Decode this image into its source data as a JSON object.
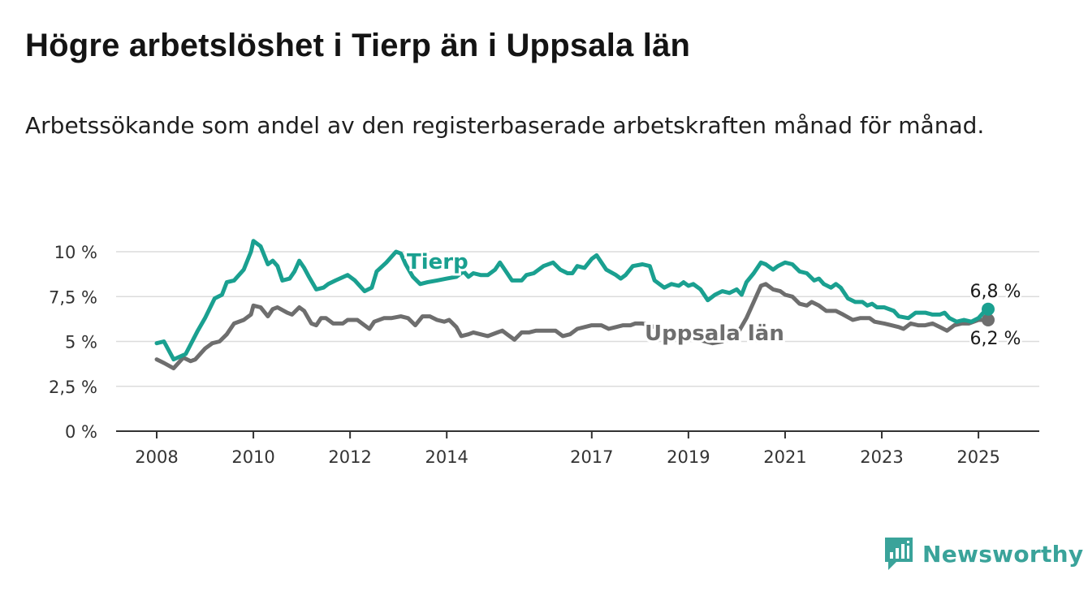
{
  "title": "Högre arbetslöshet i Tierp än i Uppsala län",
  "subtitle": "Arbetssökande som andel av den registerbaserade arbetskraften månad för månad.",
  "brand": {
    "name": "Newsworthy",
    "icon": "newsworthy-logo-icon",
    "color": "#3aa39a"
  },
  "chart_data": {
    "type": "line",
    "y_ticks": [
      {
        "value": 0,
        "label": "0 %"
      },
      {
        "value": 2.5,
        "label": "2,5 %"
      },
      {
        "value": 5,
        "label": "5 %"
      },
      {
        "value": 7.5,
        "label": "7,5 %"
      },
      {
        "value": 10,
        "label": "10 %"
      }
    ],
    "x_ticks": [
      {
        "value": 2008,
        "label": "2008"
      },
      {
        "value": 2010,
        "label": "2010"
      },
      {
        "value": 2012,
        "label": "2012"
      },
      {
        "value": 2014,
        "label": "2014"
      },
      {
        "value": 2017,
        "label": "2017"
      },
      {
        "value": 2019,
        "label": "2019"
      },
      {
        "value": 2021,
        "label": "2021"
      },
      {
        "value": 2023,
        "label": "2023"
      },
      {
        "value": 2025,
        "label": "2025"
      }
    ],
    "xlim": [
      2008,
      2025.2
    ],
    "ylim": [
      0,
      10
    ],
    "grid": true,
    "series": [
      {
        "name": "Tierp",
        "color": "#1aa090",
        "end_label": "6,8 %",
        "points": [
          [
            2008.0,
            4.9
          ],
          [
            2008.15,
            5.0
          ],
          [
            2008.35,
            4.0
          ],
          [
            2008.6,
            4.3
          ],
          [
            2008.85,
            5.6
          ],
          [
            2009.0,
            6.3
          ],
          [
            2009.2,
            7.4
          ],
          [
            2009.35,
            7.6
          ],
          [
            2009.45,
            8.3
          ],
          [
            2009.6,
            8.4
          ],
          [
            2009.8,
            9.0
          ],
          [
            2009.95,
            10.0
          ],
          [
            2010.0,
            10.6
          ],
          [
            2010.15,
            10.3
          ],
          [
            2010.3,
            9.3
          ],
          [
            2010.4,
            9.5
          ],
          [
            2010.5,
            9.2
          ],
          [
            2010.6,
            8.4
          ],
          [
            2010.75,
            8.5
          ],
          [
            2010.85,
            8.9
          ],
          [
            2010.95,
            9.5
          ],
          [
            2011.05,
            9.1
          ],
          [
            2011.15,
            8.6
          ],
          [
            2011.3,
            7.9
          ],
          [
            2011.45,
            8.0
          ],
          [
            2011.55,
            8.2
          ],
          [
            2011.7,
            8.4
          ],
          [
            2011.95,
            8.7
          ],
          [
            2012.1,
            8.4
          ],
          [
            2012.3,
            7.8
          ],
          [
            2012.45,
            8.0
          ],
          [
            2012.55,
            8.9
          ],
          [
            2012.75,
            9.4
          ],
          [
            2012.95,
            10.0
          ],
          [
            2013.05,
            9.9
          ],
          [
            2013.15,
            9.3
          ],
          [
            2013.3,
            8.6
          ],
          [
            2013.45,
            8.2
          ],
          [
            2013.6,
            8.3
          ],
          [
            2013.8,
            8.4
          ],
          [
            2014.0,
            8.5
          ],
          [
            2014.2,
            8.6
          ],
          [
            2014.35,
            8.9
          ],
          [
            2014.45,
            8.6
          ],
          [
            2014.55,
            8.8
          ],
          [
            2014.7,
            8.7
          ],
          [
            2014.85,
            8.7
          ],
          [
            2015.0,
            9.0
          ],
          [
            2015.1,
            9.4
          ],
          [
            2015.2,
            9.0
          ],
          [
            2015.35,
            8.4
          ],
          [
            2015.55,
            8.4
          ],
          [
            2015.65,
            8.7
          ],
          [
            2015.8,
            8.8
          ],
          [
            2016.0,
            9.2
          ],
          [
            2016.2,
            9.4
          ],
          [
            2016.35,
            9.0
          ],
          [
            2016.5,
            8.8
          ],
          [
            2016.6,
            8.8
          ],
          [
            2016.7,
            9.2
          ],
          [
            2016.85,
            9.1
          ],
          [
            2017.0,
            9.6
          ],
          [
            2017.1,
            9.8
          ],
          [
            2017.3,
            9.0
          ],
          [
            2017.5,
            8.7
          ],
          [
            2017.6,
            8.5
          ],
          [
            2017.7,
            8.7
          ],
          [
            2017.85,
            9.2
          ],
          [
            2018.05,
            9.3
          ],
          [
            2018.2,
            9.2
          ],
          [
            2018.3,
            8.4
          ],
          [
            2018.5,
            8.0
          ],
          [
            2018.65,
            8.2
          ],
          [
            2018.8,
            8.1
          ],
          [
            2018.9,
            8.3
          ],
          [
            2019.0,
            8.1
          ],
          [
            2019.1,
            8.2
          ],
          [
            2019.25,
            7.9
          ],
          [
            2019.4,
            7.3
          ],
          [
            2019.55,
            7.6
          ],
          [
            2019.7,
            7.8
          ],
          [
            2019.85,
            7.7
          ],
          [
            2020.0,
            7.9
          ],
          [
            2020.1,
            7.6
          ],
          [
            2020.2,
            8.3
          ],
          [
            2020.35,
            8.8
          ],
          [
            2020.5,
            9.4
          ],
          [
            2020.6,
            9.3
          ],
          [
            2020.75,
            9.0
          ],
          [
            2020.85,
            9.2
          ],
          [
            2021.0,
            9.4
          ],
          [
            2021.15,
            9.3
          ],
          [
            2021.3,
            8.9
          ],
          [
            2021.45,
            8.8
          ],
          [
            2021.6,
            8.4
          ],
          [
            2021.7,
            8.5
          ],
          [
            2021.8,
            8.2
          ],
          [
            2021.95,
            8.0
          ],
          [
            2022.05,
            8.2
          ],
          [
            2022.15,
            8.0
          ],
          [
            2022.3,
            7.4
          ],
          [
            2022.45,
            7.2
          ],
          [
            2022.6,
            7.2
          ],
          [
            2022.7,
            7.0
          ],
          [
            2022.8,
            7.1
          ],
          [
            2022.9,
            6.9
          ],
          [
            2023.05,
            6.9
          ],
          [
            2023.25,
            6.7
          ],
          [
            2023.35,
            6.4
          ],
          [
            2023.55,
            6.3
          ],
          [
            2023.7,
            6.6
          ],
          [
            2023.9,
            6.6
          ],
          [
            2024.05,
            6.5
          ],
          [
            2024.2,
            6.5
          ],
          [
            2024.3,
            6.6
          ],
          [
            2024.4,
            6.3
          ],
          [
            2024.55,
            6.1
          ],
          [
            2024.7,
            6.2
          ],
          [
            2024.85,
            6.1
          ],
          [
            2025.0,
            6.3
          ],
          [
            2025.1,
            6.6
          ],
          [
            2025.2,
            6.8
          ]
        ]
      },
      {
        "name": "Uppsala län",
        "color": "#6e6e6e",
        "end_label": "6,2 %",
        "points": [
          [
            2008.0,
            4.0
          ],
          [
            2008.15,
            3.8
          ],
          [
            2008.35,
            3.5
          ],
          [
            2008.55,
            4.1
          ],
          [
            2008.7,
            3.9
          ],
          [
            2008.8,
            4.0
          ],
          [
            2009.0,
            4.6
          ],
          [
            2009.15,
            4.9
          ],
          [
            2009.3,
            5.0
          ],
          [
            2009.45,
            5.4
          ],
          [
            2009.6,
            6.0
          ],
          [
            2009.8,
            6.2
          ],
          [
            2009.95,
            6.5
          ],
          [
            2010.0,
            7.0
          ],
          [
            2010.15,
            6.9
          ],
          [
            2010.3,
            6.4
          ],
          [
            2010.4,
            6.8
          ],
          [
            2010.5,
            6.9
          ],
          [
            2010.7,
            6.6
          ],
          [
            2010.8,
            6.5
          ],
          [
            2010.95,
            6.9
          ],
          [
            2011.05,
            6.7
          ],
          [
            2011.2,
            6.0
          ],
          [
            2011.3,
            5.9
          ],
          [
            2011.4,
            6.3
          ],
          [
            2011.5,
            6.3
          ],
          [
            2011.65,
            6.0
          ],
          [
            2011.85,
            6.0
          ],
          [
            2011.95,
            6.2
          ],
          [
            2012.15,
            6.2
          ],
          [
            2012.3,
            5.9
          ],
          [
            2012.4,
            5.7
          ],
          [
            2012.5,
            6.1
          ],
          [
            2012.7,
            6.3
          ],
          [
            2012.85,
            6.3
          ],
          [
            2013.05,
            6.4
          ],
          [
            2013.2,
            6.3
          ],
          [
            2013.35,
            5.9
          ],
          [
            2013.5,
            6.4
          ],
          [
            2013.65,
            6.4
          ],
          [
            2013.8,
            6.2
          ],
          [
            2013.95,
            6.1
          ],
          [
            2014.05,
            6.2
          ],
          [
            2014.2,
            5.8
          ],
          [
            2014.3,
            5.3
          ],
          [
            2014.45,
            5.4
          ],
          [
            2014.55,
            5.5
          ],
          [
            2014.7,
            5.4
          ],
          [
            2014.85,
            5.3
          ],
          [
            2015.05,
            5.5
          ],
          [
            2015.15,
            5.6
          ],
          [
            2015.25,
            5.4
          ],
          [
            2015.4,
            5.1
          ],
          [
            2015.55,
            5.5
          ],
          [
            2015.7,
            5.5
          ],
          [
            2015.85,
            5.6
          ],
          [
            2016.05,
            5.6
          ],
          [
            2016.25,
            5.6
          ],
          [
            2016.4,
            5.3
          ],
          [
            2016.55,
            5.4
          ],
          [
            2016.7,
            5.7
          ],
          [
            2016.85,
            5.8
          ],
          [
            2017.0,
            5.9
          ],
          [
            2017.2,
            5.9
          ],
          [
            2017.35,
            5.7
          ],
          [
            2017.5,
            5.8
          ],
          [
            2017.65,
            5.9
          ],
          [
            2017.8,
            5.9
          ],
          [
            2017.9,
            6.0
          ],
          [
            2018.05,
            6.0
          ],
          [
            2018.2,
            5.9
          ],
          [
            2018.4,
            5.7
          ],
          [
            2018.55,
            5.6
          ],
          [
            2018.7,
            5.4
          ],
          [
            2018.85,
            5.3
          ],
          [
            2019.05,
            5.2
          ],
          [
            2019.2,
            5.1
          ],
          [
            2019.35,
            5.0
          ],
          [
            2019.5,
            4.9
          ],
          [
            2019.7,
            5.0
          ],
          [
            2019.85,
            5.3
          ],
          [
            2020.05,
            5.6
          ],
          [
            2020.2,
            6.3
          ],
          [
            2020.35,
            7.2
          ],
          [
            2020.5,
            8.1
          ],
          [
            2020.6,
            8.2
          ],
          [
            2020.75,
            7.9
          ],
          [
            2020.9,
            7.8
          ],
          [
            2021.0,
            7.6
          ],
          [
            2021.15,
            7.5
          ],
          [
            2021.3,
            7.1
          ],
          [
            2021.45,
            7.0
          ],
          [
            2021.55,
            7.2
          ],
          [
            2021.7,
            7.0
          ],
          [
            2021.85,
            6.7
          ],
          [
            2022.05,
            6.7
          ],
          [
            2022.2,
            6.5
          ],
          [
            2022.4,
            6.2
          ],
          [
            2022.55,
            6.3
          ],
          [
            2022.75,
            6.3
          ],
          [
            2022.85,
            6.1
          ],
          [
            2023.05,
            6.0
          ],
          [
            2023.2,
            5.9
          ],
          [
            2023.35,
            5.8
          ],
          [
            2023.45,
            5.7
          ],
          [
            2023.6,
            6.0
          ],
          [
            2023.75,
            5.9
          ],
          [
            2023.9,
            5.9
          ],
          [
            2024.05,
            6.0
          ],
          [
            2024.2,
            5.8
          ],
          [
            2024.35,
            5.6
          ],
          [
            2024.5,
            5.9
          ],
          [
            2024.65,
            6.0
          ],
          [
            2024.8,
            6.0
          ],
          [
            2025.0,
            6.2
          ],
          [
            2025.2,
            6.2
          ]
        ]
      }
    ]
  }
}
